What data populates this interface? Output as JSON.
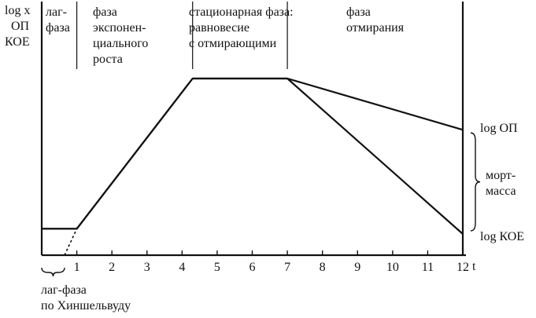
{
  "chart_data": {
    "type": "line",
    "ylabel": [
      "log x",
      "ОП",
      "КОЕ"
    ],
    "xlabel": "t",
    "x_ticks": [
      1,
      2,
      3,
      4,
      5,
      6,
      7,
      8,
      9,
      10,
      11,
      12
    ],
    "xlim": [
      0,
      12
    ],
    "phases": [
      {
        "name": "lag-phase",
        "lines": [
          "лаг-",
          "фаза"
        ]
      },
      {
        "name": "exponential-phase",
        "lines": [
          "фаза",
          "экспонен-",
          "циального",
          "роста"
        ]
      },
      {
        "name": "stationary-phase",
        "lines": [
          "стационарная фаза:",
          "равновесие",
          "с отмирающими"
        ]
      },
      {
        "name": "death-phase",
        "lines": [
          "фаза",
          "отмирания"
        ]
      }
    ],
    "series": [
      {
        "name": "log ОП",
        "points": [
          [
            0,
            0.15
          ],
          [
            1,
            0.15
          ],
          [
            4.3,
            1.0
          ],
          [
            7,
            1.0
          ],
          [
            12,
            0.71
          ]
        ]
      },
      {
        "name": "log КОЕ",
        "points": [
          [
            0,
            0.15
          ],
          [
            1,
            0.15
          ],
          [
            4.3,
            1.0
          ],
          [
            7,
            1.0
          ],
          [
            12,
            0.12
          ]
        ]
      }
    ],
    "lag_extrapolation": [
      [
        0.65,
        0.0
      ],
      [
        1,
        0.15
      ]
    ],
    "right_labels": {
      "top": "log ОП",
      "middle": [
        "морт-",
        "масса"
      ],
      "bottom": "log КОЕ"
    },
    "bottom_note": [
      "лаг-фаза",
      "по Хиншельвуду"
    ]
  }
}
